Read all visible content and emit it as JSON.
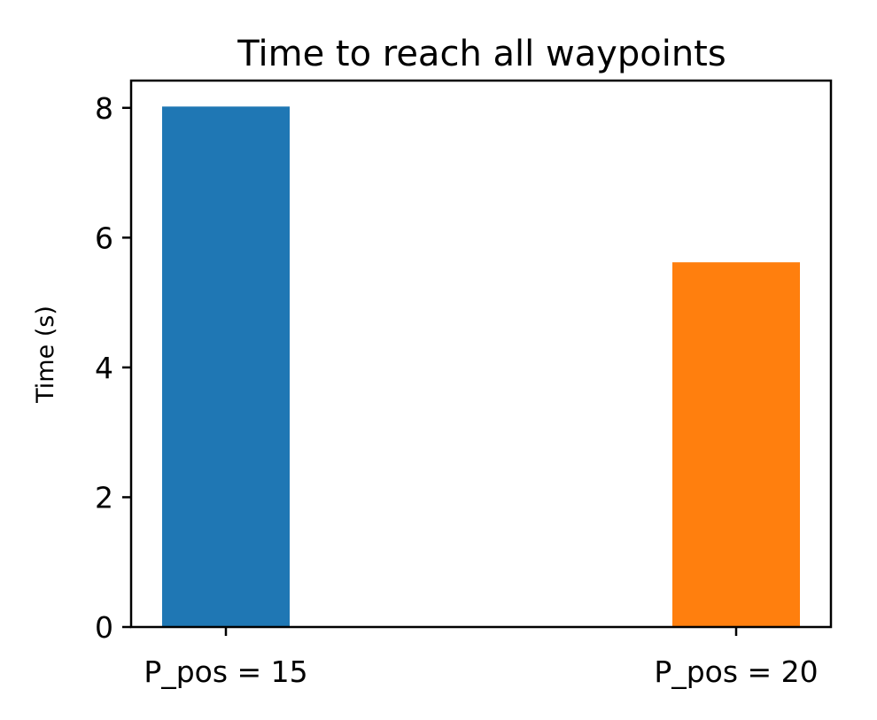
{
  "chart_data": {
    "type": "bar",
    "title": "Time to reach all waypoints",
    "xlabel": "",
    "ylabel": "Time (s)",
    "categories": [
      "P_pos = 15",
      "P_pos = 20"
    ],
    "values": [
      8.02,
      5.62
    ],
    "colors": [
      "#1f77b4",
      "#ff7f0e"
    ],
    "ylim": [
      0,
      8.42
    ],
    "yticks": [
      0,
      2,
      4,
      6,
      8
    ],
    "grid": false,
    "legend": "none"
  }
}
